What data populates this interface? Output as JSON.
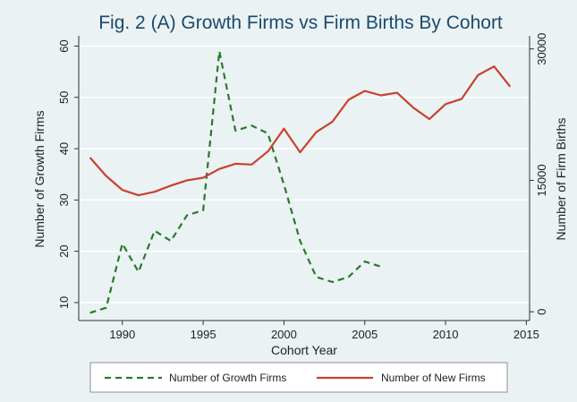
{
  "chart_data": {
    "type": "line",
    "title": "Fig. 2 (A) Growth Firms vs Firm Births By Cohort",
    "xlabel": "Cohort Year",
    "ylabel_left": "Number of Growth Firms",
    "ylabel_right": "Number of Firm Births",
    "xlim": [
      1987.3,
      2015.2
    ],
    "ylim_left": [
      6.5,
      62
    ],
    "ylim_right": [
      -1000,
      31500
    ],
    "x_ticks": [
      "1990",
      "1995",
      "2000",
      "2005",
      "2010",
      "2015"
    ],
    "y_ticks_left": [
      "10",
      "20",
      "30",
      "40",
      "50",
      "60"
    ],
    "y_ticks_right": [
      "0",
      "15000",
      "30000"
    ],
    "grid": true,
    "legend": "bottom",
    "series": [
      {
        "name": "Number of Growth Firms",
        "axis": "left",
        "color": "#2a7a2a",
        "dash": "dashed",
        "x": [
          1988,
          1989,
          1990,
          1991,
          1992,
          1993,
          1994,
          1995,
          1996,
          1997,
          1998,
          1999,
          2000,
          2001,
          2002,
          2003,
          2004,
          2005,
          2006
        ],
        "values": [
          8,
          9,
          21.5,
          16,
          24,
          22,
          27,
          28,
          59,
          43.5,
          44.5,
          43,
          33,
          22,
          15,
          14,
          15,
          18,
          17
        ]
      },
      {
        "name": "Number of New Firms",
        "axis": "right",
        "color": "#c9412f",
        "dash": "solid",
        "x": [
          1988,
          1989,
          1990,
          1991,
          1992,
          1993,
          1994,
          1995,
          1996,
          1997,
          1998,
          1999,
          2000,
          2001,
          2002,
          2003,
          2004,
          2005,
          2006,
          2007,
          2008,
          2009,
          2010,
          2011,
          2012,
          2013,
          2014
        ],
        "values": [
          17600,
          15500,
          13900,
          13300,
          13700,
          14400,
          15000,
          15300,
          16300,
          16900,
          16800,
          18300,
          20900,
          18200,
          20500,
          21700,
          24200,
          25200,
          24700,
          25000,
          23300,
          22000,
          23700,
          24300,
          27000,
          28000,
          25700
        ]
      }
    ]
  }
}
